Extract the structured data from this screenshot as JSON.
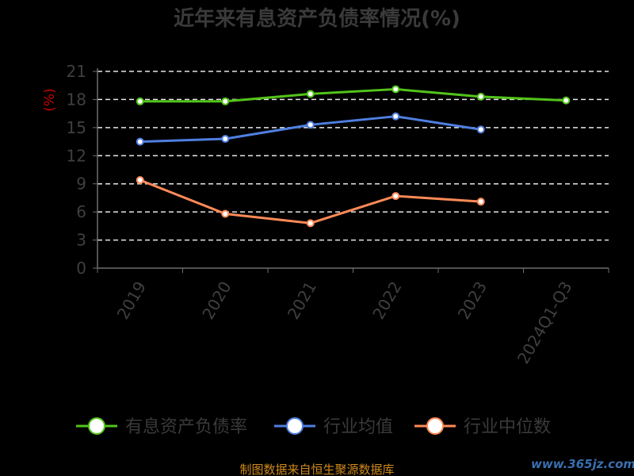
{
  "chart_data": {
    "type": "line",
    "title": "近年来有息资产负债率情况(%)",
    "ylabel": "(%)",
    "ylim": [
      0,
      21
    ],
    "yticks": [
      0,
      3,
      6,
      9,
      12,
      15,
      18,
      21
    ],
    "categories": [
      "2019",
      "2020",
      "2021",
      "2022",
      "2023",
      "2024Q1-Q3"
    ],
    "grid": true,
    "legend_position": "bottom",
    "series": [
      {
        "name": "有息资产负债率",
        "color": "#52c41a",
        "values": [
          17.8,
          17.8,
          18.6,
          19.1,
          18.3,
          17.9
        ]
      },
      {
        "name": "行业均值",
        "color": "#4f7fe0",
        "values": [
          13.5,
          13.8,
          15.3,
          16.2,
          14.8,
          null
        ]
      },
      {
        "name": "行业中位数",
        "color": "#ff8a57",
        "values": [
          9.4,
          5.8,
          4.8,
          7.7,
          7.1,
          null
        ]
      }
    ]
  },
  "source": "制图数据来自恒生聚源数据库",
  "watermark": "www.365jz.com"
}
